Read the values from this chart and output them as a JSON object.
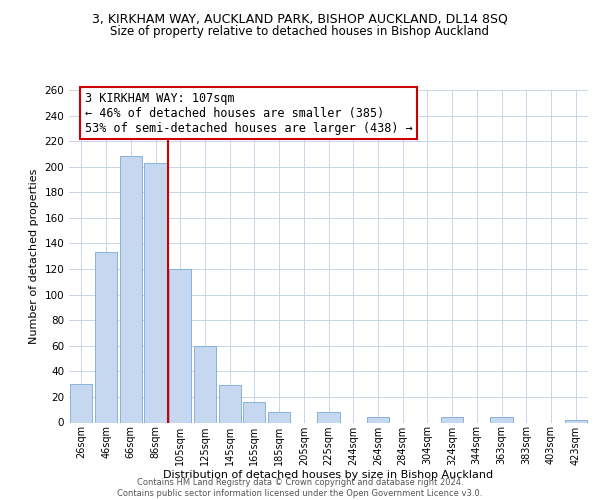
{
  "title": "3, KIRKHAM WAY, AUCKLAND PARK, BISHOP AUCKLAND, DL14 8SQ",
  "subtitle": "Size of property relative to detached houses in Bishop Auckland",
  "xlabel": "Distribution of detached houses by size in Bishop Auckland",
  "ylabel": "Number of detached properties",
  "bar_labels": [
    "26sqm",
    "46sqm",
    "66sqm",
    "86sqm",
    "105sqm",
    "125sqm",
    "145sqm",
    "165sqm",
    "185sqm",
    "205sqm",
    "225sqm",
    "244sqm",
    "264sqm",
    "284sqm",
    "304sqm",
    "324sqm",
    "344sqm",
    "363sqm",
    "383sqm",
    "403sqm",
    "423sqm"
  ],
  "bar_heights": [
    30,
    133,
    208,
    203,
    120,
    60,
    29,
    16,
    8,
    0,
    8,
    0,
    4,
    0,
    0,
    4,
    0,
    4,
    0,
    0,
    2
  ],
  "bar_color": "#c5d8ef",
  "bar_edge_color": "#7aaad4",
  "highlight_line_color": "#cc0000",
  "annotation_line1": "3 KIRKHAM WAY: 107sqm",
  "annotation_line2": "← 46% of detached houses are smaller (385)",
  "annotation_line3": "53% of semi-detached houses are larger (438) →",
  "ylim": [
    0,
    260
  ],
  "yticks": [
    0,
    20,
    40,
    60,
    80,
    100,
    120,
    140,
    160,
    180,
    200,
    220,
    240,
    260
  ],
  "footer_line1": "Contains HM Land Registry data © Crown copyright and database right 2024.",
  "footer_line2": "Contains public sector information licensed under the Open Government Licence v3.0.",
  "bg_color": "#ffffff",
  "grid_color": "#c8d4e8",
  "title_fontsize": 9,
  "subtitle_fontsize": 8.5,
  "annotation_fontsize": 8.5
}
